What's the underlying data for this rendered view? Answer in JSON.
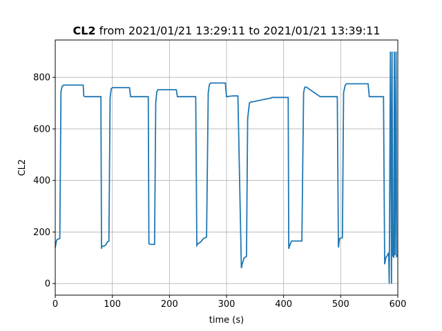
{
  "chart_data": {
    "type": "line",
    "title_bold": "CL2",
    "title_rest": " from 2021/01/21 13:29:11 to 2021/01/21 13:39:11",
    "xlabel": "time (s)",
    "ylabel": "CL2",
    "xlim": [
      0,
      600
    ],
    "ylim": [
      -45,
      945
    ],
    "xticks": [
      0,
      100,
      200,
      300,
      400,
      500,
      600
    ],
    "yticks": [
      0,
      200,
      400,
      600,
      800
    ],
    "grid": true,
    "line_color": "#1f77b4",
    "series": [
      {
        "x": [
          0,
          2,
          3,
          8,
          10,
          12,
          15,
          20,
          49,
          50,
          52,
          80,
          81,
          82,
          84,
          88,
          91,
          94,
          96,
          98,
          100,
          130,
          132,
          163,
          164,
          166,
          170,
          174,
          176,
          178,
          180,
          212,
          214,
          246,
          248,
          250,
          254,
          260,
          265,
          268,
          270,
          272,
          298,
          300,
          310,
          320,
          326,
          328,
          331,
          335,
          337,
          340,
          343,
          345,
          378,
          380,
          408,
          409,
          411,
          414,
          418,
          426,
          432,
          435,
          437,
          440,
          464,
          466,
          494,
          496,
          498,
          503,
          505,
          508,
          510,
          548,
          550,
          575,
          577,
          579,
          582,
          584,
          585,
          587,
          589,
          590,
          591,
          593,
          594,
          595,
          597,
          598,
          600
        ],
        "y": [
          140,
          165,
          170,
          175,
          745,
          765,
          770,
          770,
          770,
          728,
          725,
          725,
          135,
          145,
          145,
          148,
          160,
          165,
          720,
          755,
          760,
          760,
          725,
          725,
          155,
          152,
          152,
          152,
          700,
          745,
          752,
          752,
          725,
          725,
          148,
          155,
          160,
          175,
          180,
          740,
          772,
          778,
          778,
          725,
          728,
          728,
          60,
          80,
          100,
          105,
          640,
          700,
          705,
          705,
          720,
          722,
          722,
          135,
          150,
          165,
          165,
          165,
          165,
          740,
          762,
          762,
          725,
          725,
          725,
          140,
          175,
          178,
          740,
          770,
          775,
          775,
          725,
          725,
          75,
          100,
          110,
          120,
          0,
          900,
          0,
          900,
          110,
          100,
          900,
          110,
          900,
          105,
          110
        ]
      }
    ]
  }
}
